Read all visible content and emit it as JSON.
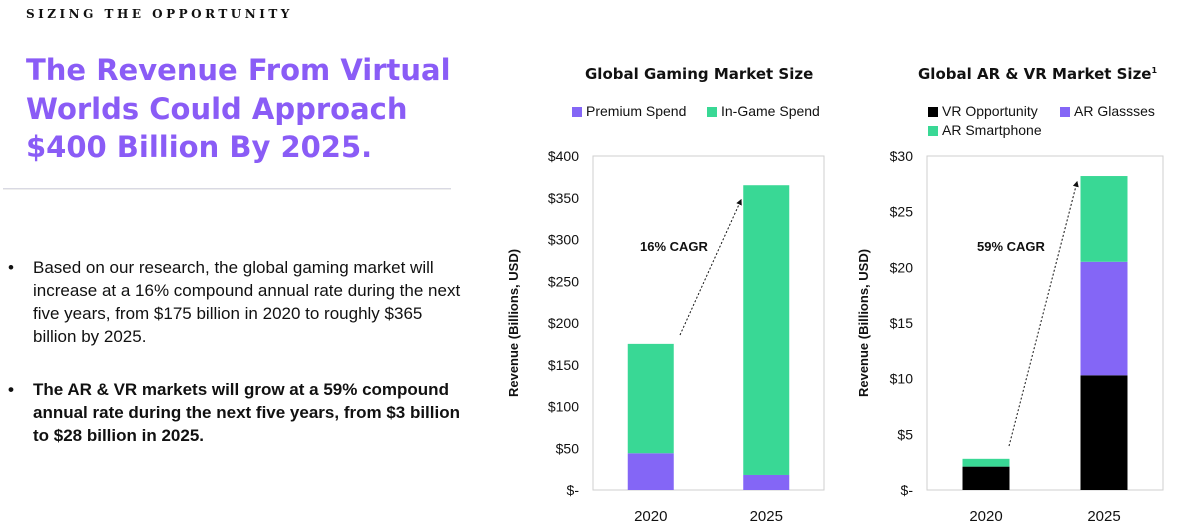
{
  "eyebrow": "SIZING THE OPPORTUNITY",
  "headline": "The Revenue From Virtual Worlds Could Approach $400 Billion By 2025.",
  "bullets": [
    {
      "marker": "•",
      "text": "Based on our research, the global gaming market will increase at a 16% compound annual rate during the next five years, from $175 billion in 2020 to roughly $365 billion by 2025."
    },
    {
      "marker": "•",
      "text": "The AR & VR markets will grow at a 59% compound annual rate during the next five years, from $3 billion to $28 billion in 2025."
    }
  ],
  "colors": {
    "accent": "#8a5cf6",
    "purple": "#8466f6",
    "green": "#39d895",
    "black": "#000000",
    "grid": "#cfcfcf"
  },
  "chart_data": [
    {
      "type": "bar",
      "stacked": true,
      "title": "Global Gaming Market Size",
      "ylabel": "Revenue (Billions, USD)",
      "categories": [
        "2020",
        "2025"
      ],
      "ylim": [
        0,
        400
      ],
      "yticks": [
        "$-",
        "$50",
        "$100",
        "$150",
        "$200",
        "$250",
        "$300",
        "$350",
        "$400"
      ],
      "grid": false,
      "legend": "top",
      "series": [
        {
          "name": "Premium Spend",
          "color": "#8466f6",
          "values": [
            44,
            18
          ]
        },
        {
          "name": "In-Game Spend",
          "color": "#39d895",
          "values": [
            131,
            347
          ]
        }
      ],
      "annotation": "16% CAGR"
    },
    {
      "type": "bar",
      "stacked": true,
      "title": "Global AR & VR Market Size",
      "title_superscript": "1",
      "ylabel": "Revenue (Billions, USD)",
      "categories": [
        "2020",
        "2025"
      ],
      "ylim": [
        0,
        30
      ],
      "yticks": [
        "$-",
        "$5",
        "$10",
        "$15",
        "$20",
        "$25",
        "$30"
      ],
      "grid": false,
      "legend": "top",
      "series": [
        {
          "name": "VR Opportunity",
          "color": "#000000",
          "values": [
            2.1,
            10.3
          ]
        },
        {
          "name": "AR Glassses",
          "color": "#8466f6",
          "values": [
            0,
            10.2
          ]
        },
        {
          "name": "AR Smartphone",
          "color": "#39d895",
          "values": [
            0.7,
            7.7
          ]
        }
      ],
      "annotation": "59% CAGR"
    }
  ]
}
